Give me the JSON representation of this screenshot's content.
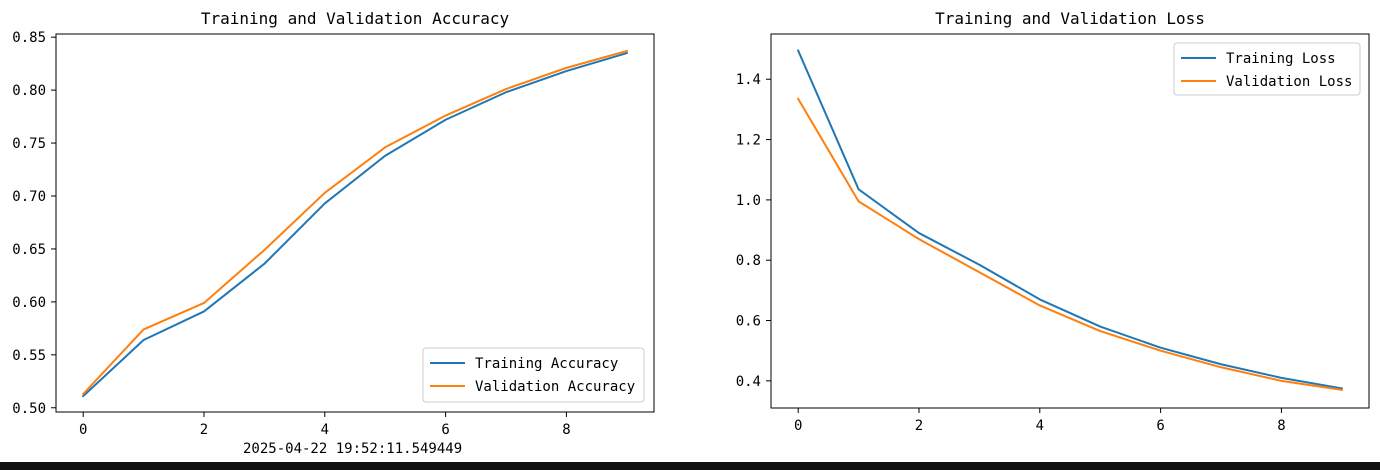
{
  "timestamp": "2025-04-22 19:52:11.549449",
  "colors": {
    "training": "#1f77b4",
    "validation": "#ff7f0e",
    "axes": "#000000",
    "background": "#ffffff"
  },
  "chart_data": [
    {
      "type": "line",
      "title": "Training and Validation Accuracy",
      "xlabel": "",
      "ylabel": "",
      "x": [
        0,
        1,
        2,
        3,
        4,
        5,
        6,
        7,
        8,
        9
      ],
      "xlim": [
        -0.45,
        9.45
      ],
      "ylim": [
        0.496,
        0.853
      ],
      "xticks": [
        0,
        2,
        4,
        6,
        8
      ],
      "yticks": [
        0.5,
        0.55,
        0.6,
        0.65,
        0.7,
        0.75,
        0.8,
        0.85
      ],
      "grid": false,
      "legend_position": "lower-right",
      "series": [
        {
          "name": "Training Accuracy",
          "color": "#1f77b4",
          "values": [
            0.511,
            0.564,
            0.591,
            0.636,
            0.693,
            0.738,
            0.772,
            0.798,
            0.818,
            0.835
          ]
        },
        {
          "name": "Validation Accuracy",
          "color": "#ff7f0e",
          "values": [
            0.513,
            0.574,
            0.599,
            0.649,
            0.703,
            0.746,
            0.776,
            0.801,
            0.821,
            0.837
          ]
        }
      ]
    },
    {
      "type": "line",
      "title": "Training and Validation Loss",
      "xlabel": "",
      "ylabel": "",
      "x": [
        0,
        1,
        2,
        3,
        4,
        5,
        6,
        7,
        8,
        9
      ],
      "xlim": [
        -0.45,
        9.45
      ],
      "ylim": [
        0.31,
        1.55
      ],
      "xticks": [
        0,
        2,
        4,
        6,
        8
      ],
      "yticks": [
        0.4,
        0.6,
        0.8,
        1.0,
        1.2,
        1.4
      ],
      "grid": false,
      "legend_position": "upper-right",
      "series": [
        {
          "name": "Training Loss",
          "color": "#1f77b4",
          "values": [
            1.495,
            1.035,
            0.89,
            0.785,
            0.67,
            0.58,
            0.51,
            0.455,
            0.41,
            0.375
          ]
        },
        {
          "name": "Validation Loss",
          "color": "#ff7f0e",
          "values": [
            1.335,
            0.995,
            0.87,
            0.76,
            0.65,
            0.565,
            0.5,
            0.445,
            0.4,
            0.37
          ]
        }
      ]
    }
  ]
}
